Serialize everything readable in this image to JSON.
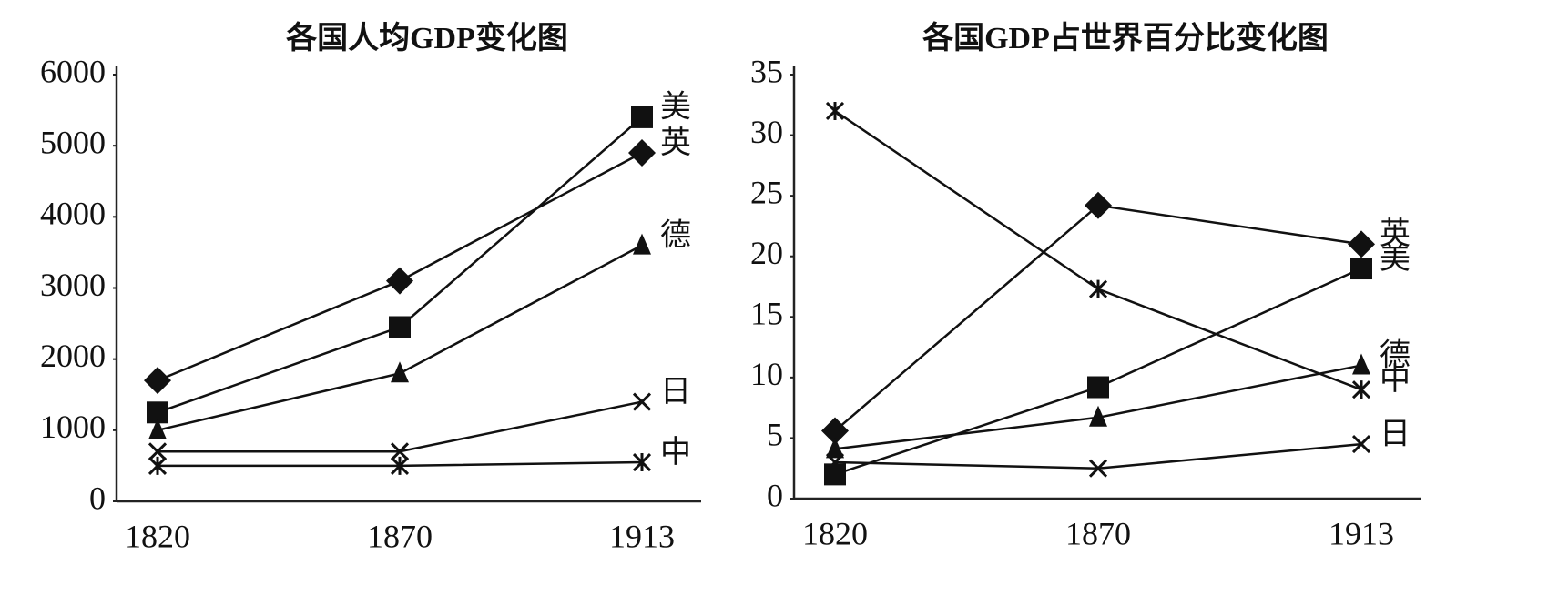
{
  "chart_data": [
    {
      "type": "line",
      "title": "各国人均GDP变化图",
      "categories": [
        "1820",
        "1870",
        "1913"
      ],
      "ylim": [
        0,
        6000
      ],
      "yticks": [
        0,
        1000,
        2000,
        3000,
        4000,
        5000,
        6000
      ],
      "series": [
        {
          "name": "美",
          "color": "#111111",
          "marker": "square",
          "values": [
            1250,
            2450,
            5400
          ]
        },
        {
          "name": "英",
          "color": "#111111",
          "marker": "diamond",
          "values": [
            1700,
            3100,
            4900
          ]
        },
        {
          "name": "德",
          "color": "#111111",
          "marker": "triangle",
          "values": [
            1000,
            1800,
            3600
          ]
        },
        {
          "name": "日",
          "color": "#111111",
          "marker": "x",
          "values": [
            700,
            700,
            1400
          ]
        },
        {
          "name": "中",
          "color": "#111111",
          "marker": "asterisk",
          "values": [
            500,
            500,
            550
          ]
        }
      ]
    },
    {
      "type": "line",
      "title": "各国GDP占世界百分比变化图",
      "categories": [
        "1820",
        "1870",
        "1913"
      ],
      "ylim": [
        0,
        35
      ],
      "yticks": [
        0,
        5,
        10,
        15,
        20,
        25,
        30,
        35
      ],
      "series": [
        {
          "name": "英",
          "color": "#111111",
          "marker": "diamond",
          "values": [
            5.6,
            24.2,
            21
          ]
        },
        {
          "name": "美",
          "color": "#111111",
          "marker": "square",
          "values": [
            2,
            9.2,
            19
          ]
        },
        {
          "name": "德",
          "color": "#111111",
          "marker": "triangle",
          "values": [
            4.1,
            6.7,
            11
          ]
        },
        {
          "name": "中",
          "color": "#111111",
          "marker": "asterisk",
          "values": [
            32,
            17.3,
            9
          ]
        },
        {
          "name": "日",
          "color": "#111111",
          "marker": "x",
          "values": [
            3,
            2.5,
            4.5
          ]
        }
      ]
    }
  ]
}
